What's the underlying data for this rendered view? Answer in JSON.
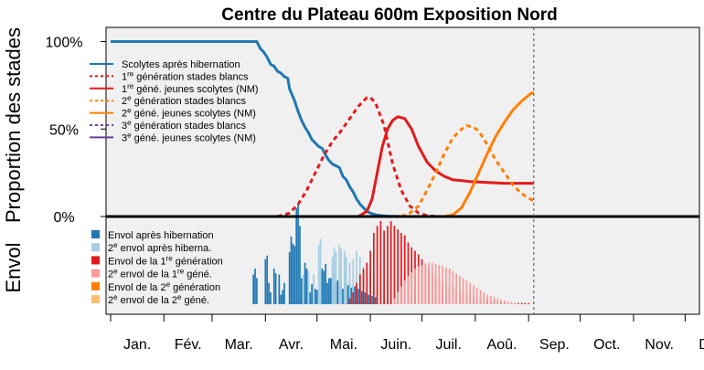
{
  "chart_data": {
    "type": "line",
    "title": "Centre du Plateau 600m Exposition Nord",
    "ylabel_top": "Proportion des stades",
    "ylabel_bottom": "Envol",
    "ytick_labels": [
      "100%",
      "50%",
      "0%"
    ],
    "yticks": [
      100,
      50,
      0
    ],
    "ylim": [
      0,
      100
    ],
    "xlim_day": [
      1,
      365
    ],
    "months": [
      "Jan.",
      "Fév.",
      "Mar.",
      "Avr.",
      "Mai.",
      "Juin.",
      "Juil.",
      "Aoû.",
      "Sep.",
      "Oct.",
      "Nov.",
      "Déc"
    ],
    "current_date_day": 247,
    "grid": false,
    "background": "#f0f0f0",
    "series": [
      {
        "name": "Scolytes après hibernation",
        "color": "#1f78b4",
        "dash": "solid",
        "x": [
          1,
          86,
          88,
          90,
          92,
          94,
          96,
          98,
          100,
          102,
          104,
          105,
          108,
          110,
          112,
          114,
          116,
          118,
          120,
          122,
          124,
          126,
          128,
          130,
          132,
          134,
          136,
          138,
          140,
          142,
          144,
          146,
          148,
          150,
          152,
          155,
          158,
          162,
          170
        ],
        "y": [
          100,
          100,
          96,
          94,
          91,
          87,
          86,
          83,
          82,
          80,
          79,
          73,
          66,
          60,
          55,
          51,
          48,
          44,
          42,
          40,
          39,
          35,
          32,
          30,
          29,
          28,
          23,
          21,
          17,
          14,
          10,
          7,
          5,
          3,
          2,
          1,
          0.5,
          0.2,
          0
        ]
      },
      {
        "name": "1re génération stades blancs",
        "color": "#e31a1c",
        "dash": "dash",
        "x": [
          98,
          105,
          110,
          115,
          120,
          125,
          130,
          135,
          140,
          145,
          150,
          152,
          155,
          160,
          165,
          170,
          175,
          180,
          185,
          190
        ],
        "y": [
          0,
          2,
          7,
          15,
          25,
          35,
          43,
          49,
          56,
          63,
          68,
          68,
          65,
          52,
          30,
          15,
          6,
          2,
          0.5,
          0
        ]
      },
      {
        "name": "1re géné. jeunes scolytes (NM)",
        "color": "#e31a1c",
        "dash": "solid",
        "x": [
          145,
          150,
          153,
          156,
          159,
          162,
          165,
          168,
          172,
          176,
          180,
          185,
          190,
          195,
          200,
          210,
          220,
          230,
          240,
          247
        ],
        "y": [
          0,
          3,
          10,
          25,
          40,
          50,
          55,
          57,
          56,
          50,
          40,
          31,
          26,
          23,
          21,
          20,
          19.5,
          19,
          19,
          19
        ]
      },
      {
        "name": "2e génération stades blancs",
        "color": "#ff7f00",
        "dash": "dash",
        "x": [
          170,
          175,
          180,
          185,
          190,
          195,
          200,
          205,
          208,
          212,
          215,
          220,
          225,
          230,
          235,
          240,
          245,
          247
        ],
        "y": [
          0,
          2,
          6,
          15,
          25,
          36,
          45,
          50,
          52,
          51,
          49,
          41,
          32,
          25,
          18,
          13,
          10,
          9
        ]
      },
      {
        "name": "2e géné. jeunes scolytes (NM)",
        "color": "#ff7f00",
        "dash": "solid",
        "x": [
          195,
          200,
          205,
          210,
          215,
          220,
          225,
          230,
          235,
          240,
          245,
          247
        ],
        "y": [
          0,
          1,
          5,
          14,
          25,
          36,
          46,
          54,
          61,
          66,
          70,
          71
        ]
      },
      {
        "name": "3e génération stades blancs",
        "color": "#6a3d9a",
        "dash": "dash",
        "x": [],
        "y": []
      },
      {
        "name": "3e géné. jeunes scolytes (NM)",
        "color": "#6a3d9a",
        "dash": "solid",
        "x": [],
        "y": []
      }
    ],
    "envol_series": [
      {
        "name": "Envol après hibernation",
        "color": "#1f78b4"
      },
      {
        "name": "2e envol après hiberna.",
        "color": "#a6cee3"
      },
      {
        "name": "Envol de la 1re génération",
        "color": "#e31a1c"
      },
      {
        "name": "2e envol de la 1re géné.",
        "color": "#fb9a99"
      },
      {
        "name": "Envol de la 2e génération",
        "color": "#ff7f00"
      },
      {
        "name": "2e envol de la 2e géné.",
        "color": "#fdbf6f"
      }
    ],
    "envol_bars": [
      {
        "day": 84,
        "s": 0,
        "v": 0.25
      },
      {
        "day": 85,
        "s": 0,
        "v": 0.3
      },
      {
        "day": 86,
        "s": 0,
        "v": 0.22
      },
      {
        "day": 91,
        "s": 0,
        "v": 0.38
      },
      {
        "day": 92,
        "s": 0,
        "v": 0.41
      },
      {
        "day": 93,
        "s": 0,
        "v": 0.18
      },
      {
        "day": 94,
        "s": 0,
        "v": 0.1
      },
      {
        "day": 96,
        "s": 0,
        "v": 0.3
      },
      {
        "day": 97,
        "s": 0,
        "v": 0.26
      },
      {
        "day": 99,
        "s": 0,
        "v": 0.25
      },
      {
        "day": 100,
        "s": 0,
        "v": 0.08
      },
      {
        "day": 101,
        "s": 0,
        "v": 0.12
      },
      {
        "day": 102,
        "s": 0,
        "v": 0.18
      },
      {
        "day": 105,
        "s": 0,
        "v": 0.44
      },
      {
        "day": 106,
        "s": 0,
        "v": 0.57
      },
      {
        "day": 107,
        "s": 0,
        "v": 0.51
      },
      {
        "day": 108,
        "s": 0,
        "v": 0.49
      },
      {
        "day": 109,
        "s": 0,
        "v": 0.81
      },
      {
        "day": 110,
        "s": 0,
        "v": 0.85
      },
      {
        "day": 111,
        "s": 0,
        "v": 0.66
      },
      {
        "day": 112,
        "s": 0,
        "v": 0.22
      },
      {
        "day": 114,
        "s": 0,
        "v": 0.35
      },
      {
        "day": 115,
        "s": 0,
        "v": 0.3
      },
      {
        "day": 117,
        "s": 0,
        "v": 0.1
      },
      {
        "day": 118,
        "s": 0,
        "v": 0.17
      },
      {
        "day": 120,
        "s": 0,
        "v": 0.13
      },
      {
        "day": 121,
        "s": 0,
        "v": 0.12
      },
      {
        "day": 124,
        "s": 0,
        "v": 0.3
      },
      {
        "day": 125,
        "s": 0,
        "v": 0.28
      },
      {
        "day": 126,
        "s": 0,
        "v": 0.34
      },
      {
        "day": 127,
        "s": 0,
        "v": 0.18
      },
      {
        "day": 128,
        "s": 0,
        "v": 0.22
      },
      {
        "day": 129,
        "s": 0,
        "v": 0.22
      },
      {
        "day": 130,
        "s": 0,
        "v": 0.2
      },
      {
        "day": 131,
        "s": 0,
        "v": 0.25
      },
      {
        "day": 132,
        "s": 0,
        "v": 0.18
      },
      {
        "day": 133,
        "s": 0,
        "v": 0.2
      },
      {
        "day": 134,
        "s": 0,
        "v": 0.22
      },
      {
        "day": 135,
        "s": 0,
        "v": 0.16
      },
      {
        "day": 136,
        "s": 0,
        "v": 0.13
      },
      {
        "day": 137,
        "s": 0,
        "v": 0.25
      },
      {
        "day": 138,
        "s": 0,
        "v": 0.18
      },
      {
        "day": 139,
        "s": 0,
        "v": 0.16
      },
      {
        "day": 140,
        "s": 0,
        "v": 0.18
      },
      {
        "day": 141,
        "s": 0,
        "v": 0.14
      },
      {
        "day": 142,
        "s": 0,
        "v": 0.15
      },
      {
        "day": 143,
        "s": 0,
        "v": 0.15
      },
      {
        "day": 144,
        "s": 0,
        "v": 0.12
      },
      {
        "day": 145,
        "s": 0,
        "v": 0.13
      },
      {
        "day": 146,
        "s": 0,
        "v": 0.12
      },
      {
        "day": 147,
        "s": 0,
        "v": 0.11
      },
      {
        "day": 148,
        "s": 0,
        "v": 0.1
      },
      {
        "day": 149,
        "s": 0,
        "v": 0.1
      },
      {
        "day": 150,
        "s": 0,
        "v": 0.08
      },
      {
        "day": 151,
        "s": 0,
        "v": 0.08
      },
      {
        "day": 152,
        "s": 0,
        "v": 0.07
      },
      {
        "day": 153,
        "s": 0,
        "v": 0.07
      },
      {
        "day": 154,
        "s": 0,
        "v": 0.06
      },
      {
        "day": 155,
        "s": 0,
        "v": 0.06
      },
      {
        "day": 156,
        "s": 0,
        "v": 0.05
      },
      {
        "day": 158,
        "s": 0,
        "v": 0.05
      },
      {
        "day": 160,
        "s": 0,
        "v": 0.04
      },
      {
        "day": 162,
        "s": 0,
        "v": 0.04
      },
      {
        "day": 164,
        "s": 0,
        "v": 0.03
      },
      {
        "day": 166,
        "s": 0,
        "v": 0.03
      },
      {
        "day": 168,
        "s": 0,
        "v": 0.02
      },
      {
        "day": 113,
        "s": 1,
        "v": 0.25
      },
      {
        "day": 116,
        "s": 1,
        "v": 0.28
      },
      {
        "day": 119,
        "s": 1,
        "v": 0.25
      },
      {
        "day": 122,
        "s": 1,
        "v": 0.5
      },
      {
        "day": 123,
        "s": 1,
        "v": 0.55
      },
      {
        "day": 130,
        "s": 1,
        "v": 0.4
      },
      {
        "day": 131,
        "s": 1,
        "v": 0.48
      },
      {
        "day": 132,
        "s": 1,
        "v": 0.44
      },
      {
        "day": 134,
        "s": 1,
        "v": 0.5
      },
      {
        "day": 135,
        "s": 1,
        "v": 0.47
      },
      {
        "day": 137,
        "s": 1,
        "v": 0.45
      },
      {
        "day": 138,
        "s": 1,
        "v": 0.4
      },
      {
        "day": 140,
        "s": 1,
        "v": 0.35
      },
      {
        "day": 142,
        "s": 1,
        "v": 0.38
      },
      {
        "day": 144,
        "s": 1,
        "v": 0.45
      },
      {
        "day": 146,
        "s": 1,
        "v": 0.4
      },
      {
        "day": 148,
        "s": 1,
        "v": 0.32
      },
      {
        "day": 150,
        "s": 1,
        "v": 0.3
      },
      {
        "day": 152,
        "s": 1,
        "v": 0.28
      },
      {
        "day": 154,
        "s": 1,
        "v": 0.25
      },
      {
        "day": 156,
        "s": 1,
        "v": 0.22
      },
      {
        "day": 158,
        "s": 1,
        "v": 0.18
      },
      {
        "day": 160,
        "s": 1,
        "v": 0.15
      },
      {
        "day": 162,
        "s": 1,
        "v": 0.12
      },
      {
        "day": 164,
        "s": 1,
        "v": 0.1
      },
      {
        "day": 166,
        "s": 1,
        "v": 0.08
      },
      {
        "day": 168,
        "s": 1,
        "v": 0.06
      },
      {
        "day": 170,
        "s": 1,
        "v": 0.05
      },
      {
        "day": 172,
        "s": 1,
        "v": 0.04
      },
      {
        "day": 174,
        "s": 1,
        "v": 0.03
      },
      {
        "day": 176,
        "s": 1,
        "v": 0.02
      },
      {
        "day": 140,
        "s": 2,
        "v": 0.05
      },
      {
        "day": 142,
        "s": 2,
        "v": 0.1
      },
      {
        "day": 144,
        "s": 2,
        "v": 0.18
      },
      {
        "day": 146,
        "s": 2,
        "v": 0.25
      },
      {
        "day": 148,
        "s": 2,
        "v": 0.3
      },
      {
        "day": 150,
        "s": 2,
        "v": 0.35
      },
      {
        "day": 152,
        "s": 2,
        "v": 0.45
      },
      {
        "day": 154,
        "s": 2,
        "v": 0.6
      },
      {
        "day": 156,
        "s": 2,
        "v": 0.66
      },
      {
        "day": 158,
        "s": 2,
        "v": 0.7
      },
      {
        "day": 160,
        "s": 2,
        "v": 0.62
      },
      {
        "day": 162,
        "s": 2,
        "v": 0.66
      },
      {
        "day": 164,
        "s": 2,
        "v": 0.7
      },
      {
        "day": 166,
        "s": 2,
        "v": 0.66
      },
      {
        "day": 168,
        "s": 2,
        "v": 0.63
      },
      {
        "day": 170,
        "s": 2,
        "v": 0.6
      },
      {
        "day": 172,
        "s": 2,
        "v": 0.58
      },
      {
        "day": 174,
        "s": 2,
        "v": 0.52
      },
      {
        "day": 176,
        "s": 2,
        "v": 0.48
      },
      {
        "day": 178,
        "s": 2,
        "v": 0.45
      },
      {
        "day": 180,
        "s": 2,
        "v": 0.42
      },
      {
        "day": 182,
        "s": 2,
        "v": 0.38
      },
      {
        "day": 184,
        "s": 2,
        "v": 0.34
      },
      {
        "day": 186,
        "s": 2,
        "v": 0.3
      },
      {
        "day": 188,
        "s": 2,
        "v": 0.26
      },
      {
        "day": 190,
        "s": 2,
        "v": 0.22
      },
      {
        "day": 192,
        "s": 2,
        "v": 0.2
      },
      {
        "day": 194,
        "s": 2,
        "v": 0.18
      },
      {
        "day": 196,
        "s": 2,
        "v": 0.16
      },
      {
        "day": 198,
        "s": 2,
        "v": 0.15
      },
      {
        "day": 200,
        "s": 2,
        "v": 0.14
      },
      {
        "day": 202,
        "s": 2,
        "v": 0.12
      },
      {
        "day": 204,
        "s": 2,
        "v": 0.11
      },
      {
        "day": 206,
        "s": 2,
        "v": 0.1
      },
      {
        "day": 208,
        "s": 2,
        "v": 0.09
      },
      {
        "day": 210,
        "s": 2,
        "v": 0.08
      },
      {
        "day": 212,
        "s": 2,
        "v": 0.07
      },
      {
        "day": 214,
        "s": 2,
        "v": 0.06
      },
      {
        "day": 216,
        "s": 2,
        "v": 0.05
      },
      {
        "day": 218,
        "s": 2,
        "v": 0.04
      },
      {
        "day": 220,
        "s": 2,
        "v": 0.04
      },
      {
        "day": 222,
        "s": 2,
        "v": 0.03
      },
      {
        "day": 224,
        "s": 2,
        "v": 0.03
      },
      {
        "day": 226,
        "s": 2,
        "v": 0.02
      },
      {
        "day": 228,
        "s": 2,
        "v": 0.02
      },
      {
        "day": 230,
        "s": 2,
        "v": 0.02
      },
      {
        "day": 232,
        "s": 2,
        "v": 0.01
      },
      {
        "day": 234,
        "s": 2,
        "v": 0.01
      },
      {
        "day": 236,
        "s": 2,
        "v": 0.01
      },
      {
        "day": 238,
        "s": 2,
        "v": 0.01
      },
      {
        "day": 240,
        "s": 2,
        "v": 0.01
      },
      {
        "day": 242,
        "s": 2,
        "v": 0.01
      },
      {
        "day": 244,
        "s": 2,
        "v": 0.01
      },
      {
        "day": 166,
        "s": 3,
        "v": 0.05
      },
      {
        "day": 168,
        "s": 3,
        "v": 0.1
      },
      {
        "day": 170,
        "s": 3,
        "v": 0.15
      },
      {
        "day": 172,
        "s": 3,
        "v": 0.2
      },
      {
        "day": 174,
        "s": 3,
        "v": 0.24
      },
      {
        "day": 176,
        "s": 3,
        "v": 0.27
      },
      {
        "day": 178,
        "s": 3,
        "v": 0.3
      },
      {
        "day": 180,
        "s": 3,
        "v": 0.32
      },
      {
        "day": 182,
        "s": 3,
        "v": 0.33
      },
      {
        "day": 184,
        "s": 3,
        "v": 0.34
      },
      {
        "day": 186,
        "s": 3,
        "v": 0.35
      },
      {
        "day": 188,
        "s": 3,
        "v": 0.35
      },
      {
        "day": 190,
        "s": 3,
        "v": 0.34
      },
      {
        "day": 192,
        "s": 3,
        "v": 0.33
      },
      {
        "day": 194,
        "s": 3,
        "v": 0.32
      },
      {
        "day": 196,
        "s": 3,
        "v": 0.31
      },
      {
        "day": 198,
        "s": 3,
        "v": 0.3
      },
      {
        "day": 200,
        "s": 3,
        "v": 0.28
      },
      {
        "day": 202,
        "s": 3,
        "v": 0.26
      },
      {
        "day": 204,
        "s": 3,
        "v": 0.24
      },
      {
        "day": 206,
        "s": 3,
        "v": 0.22
      },
      {
        "day": 208,
        "s": 3,
        "v": 0.2
      },
      {
        "day": 210,
        "s": 3,
        "v": 0.18
      },
      {
        "day": 212,
        "s": 3,
        "v": 0.16
      },
      {
        "day": 214,
        "s": 3,
        "v": 0.14
      },
      {
        "day": 216,
        "s": 3,
        "v": 0.12
      },
      {
        "day": 218,
        "s": 3,
        "v": 0.1
      },
      {
        "day": 220,
        "s": 3,
        "v": 0.08
      },
      {
        "day": 222,
        "s": 3,
        "v": 0.07
      },
      {
        "day": 224,
        "s": 3,
        "v": 0.06
      },
      {
        "day": 226,
        "s": 3,
        "v": 0.05
      },
      {
        "day": 228,
        "s": 3,
        "v": 0.04
      },
      {
        "day": 230,
        "s": 3,
        "v": 0.03
      },
      {
        "day": 232,
        "s": 3,
        "v": 0.02
      },
      {
        "day": 234,
        "s": 3,
        "v": 0.02
      },
      {
        "day": 236,
        "s": 3,
        "v": 0.01
      }
    ]
  }
}
